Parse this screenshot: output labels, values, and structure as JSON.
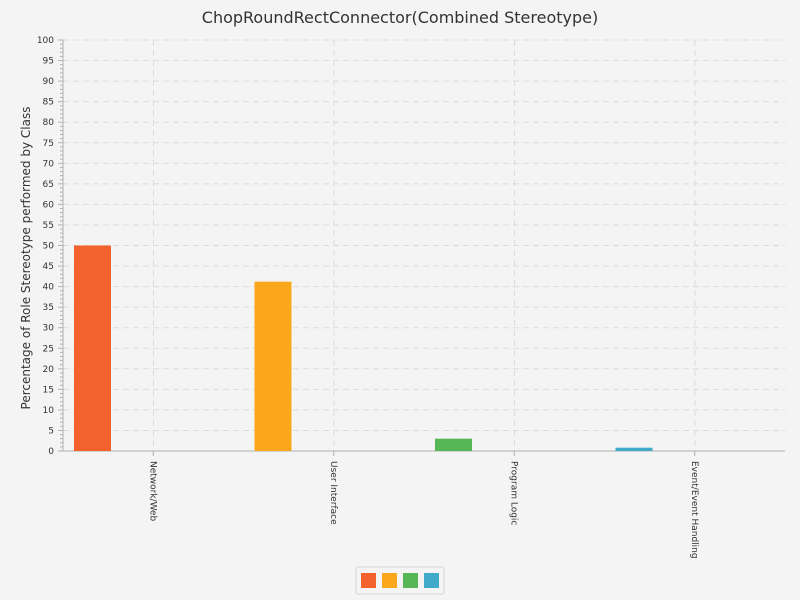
{
  "chart_data": {
    "type": "bar",
    "title": "ChopRoundRectConnector(Combined Stereotype)",
    "xlabel": "",
    "ylabel": "Percentage of Role Stereotype performed by Class",
    "categories": [
      "Network/Web",
      "User Interface",
      "Program Logic",
      "Event/Event Handling"
    ],
    "values": [
      50,
      41.2,
      3,
      0.8
    ],
    "colors": [
      "#f3622d",
      "#fba71b",
      "#57b757",
      "#41a9c9"
    ],
    "ylim": [
      0,
      100
    ],
    "ytick_step": 5,
    "grid": true,
    "legend": {
      "position": "bottom-center",
      "entries": [
        "",
        "",
        "",
        ""
      ]
    }
  }
}
